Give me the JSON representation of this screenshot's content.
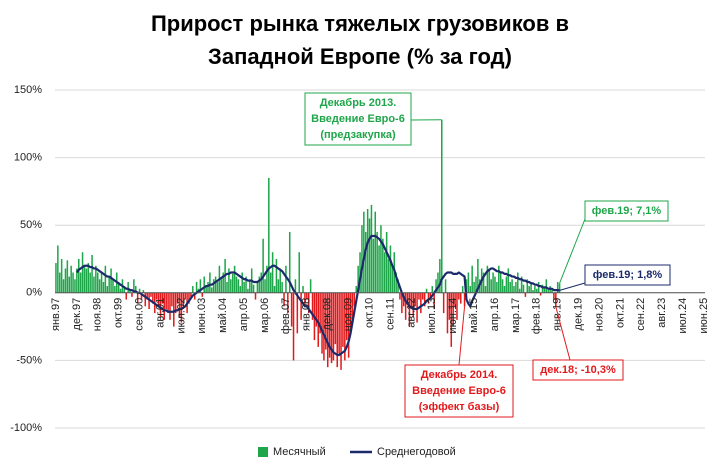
{
  "chart_data": {
    "type": "bar",
    "title": [
      "Прирост рынка тяжелых грузовиков в",
      "Западной Европе (% за год)"
    ],
    "categories": [
      "янв.97",
      null,
      null,
      null,
      null,
      null,
      null,
      null,
      null,
      null,
      null,
      "дек.97",
      null,
      null,
      null,
      null,
      null,
      null,
      null,
      null,
      null,
      null,
      "ноя.98",
      null,
      null,
      null,
      null,
      null,
      null,
      null,
      null,
      null,
      null,
      "окт.99",
      null,
      null,
      null,
      null,
      null,
      null,
      null,
      null,
      null,
      null,
      "сен.00",
      null,
      null,
      null,
      null,
      null,
      null,
      null,
      null,
      null,
      null,
      "авг.01",
      null,
      null,
      null,
      null,
      null,
      null,
      null,
      null,
      null,
      null,
      "июл.02",
      null,
      null,
      null,
      null,
      null,
      null,
      null,
      null,
      null,
      null,
      "июн.03",
      null,
      null,
      null,
      null,
      null,
      null,
      null,
      null,
      null,
      null,
      "май.04",
      null,
      null,
      null,
      null,
      null,
      null,
      null,
      null,
      null,
      null,
      "апр.05",
      null,
      null,
      null,
      null,
      null,
      null,
      null,
      null,
      null,
      null,
      "мар.06",
      null,
      null,
      null,
      null,
      null,
      null,
      null,
      null,
      null,
      null,
      "фев.07",
      null,
      null,
      null,
      null,
      null,
      null,
      null,
      null,
      null,
      null,
      "янв.08",
      null,
      null,
      null,
      null,
      null,
      null,
      null,
      null,
      null,
      null,
      "дек.08",
      null,
      null,
      null,
      null,
      null,
      null,
      null,
      null,
      null,
      null,
      "ноя.09",
      null,
      null,
      null,
      null,
      null,
      null,
      null,
      null,
      null,
      null,
      "окт.10",
      null,
      null,
      null,
      null,
      null,
      null,
      null,
      null,
      null,
      null,
      "сен.11",
      null,
      null,
      null,
      null,
      null,
      null,
      null,
      null,
      null,
      null,
      "авг.12",
      null,
      null,
      null,
      null,
      null,
      null,
      null,
      null,
      null,
      null,
      "июл.13",
      null,
      null,
      null,
      null,
      null,
      null,
      null,
      null,
      null,
      null,
      "июн.14",
      null,
      null,
      null,
      null,
      null,
      null,
      null,
      null,
      null,
      null,
      "май.15",
      null,
      null,
      null,
      null,
      null,
      null,
      null,
      null,
      null,
      null,
      "апр.16",
      null,
      null,
      null,
      null,
      null,
      null,
      null,
      null,
      null,
      null,
      "мар.17",
      null,
      null,
      null,
      null,
      null,
      null,
      null,
      null,
      null,
      null,
      "фев.18",
      null,
      null,
      null,
      null,
      null,
      null,
      null,
      null,
      null,
      null,
      "янв.19",
      null,
      null,
      null,
      null,
      null,
      null,
      null,
      null,
      null,
      null,
      "дек.19",
      null,
      null,
      null,
      null,
      null,
      null,
      null,
      null,
      null,
      null,
      "ноя.20",
      null,
      null,
      null,
      null,
      null,
      null,
      null,
      null,
      null,
      null,
      "окт.21",
      null,
      null,
      null,
      null,
      null,
      null,
      null,
      null,
      null,
      null,
      "сен.22",
      null,
      null,
      null,
      null,
      null,
      null,
      null,
      null,
      null,
      null,
      "авг.23",
      null,
      null,
      null,
      null,
      null,
      null,
      null,
      null,
      null,
      null,
      "июл.24",
      null,
      null,
      null,
      null,
      null,
      null,
      null,
      null,
      null,
      null,
      "июн.25"
    ],
    "series": [
      {
        "name": "Месячный",
        "type": "bar",
        "color": "#1fa64a",
        "negative_color": "#e31a1c",
        "values": [
          22,
          35,
          15,
          25,
          10,
          18,
          24,
          12,
          20,
          15,
          10,
          18,
          25,
          15,
          30,
          20,
          18,
          22,
          15,
          28,
          12,
          20,
          15,
          10,
          15,
          8,
          20,
          5,
          12,
          18,
          10,
          5,
          15,
          8,
          3,
          10,
          5,
          -5,
          8,
          2,
          -3,
          10,
          5,
          -8,
          3,
          -5,
          2,
          -10,
          -5,
          -12,
          -3,
          -8,
          -15,
          -5,
          -10,
          -18,
          -8,
          -20,
          -12,
          -15,
          -20,
          -10,
          -25,
          -15,
          -8,
          -18,
          -22,
          -10,
          -5,
          -15,
          -8,
          -3,
          5,
          -5,
          8,
          3,
          10,
          -3,
          12,
          5,
          8,
          15,
          4,
          10,
          12,
          8,
          20,
          10,
          15,
          25,
          8,
          18,
          10,
          14,
          20,
          12,
          10,
          5,
          15,
          8,
          12,
          3,
          10,
          18,
          6,
          -5,
          8,
          12,
          15,
          40,
          10,
          20,
          85,
          15,
          30,
          5,
          25,
          10,
          18,
          8,
          -10,
          20,
          -15,
          45,
          -25,
          -50,
          10,
          -30,
          30,
          -20,
          5,
          -10,
          -5,
          -15,
          10,
          -20,
          -35,
          -25,
          -40,
          -30,
          -45,
          -50,
          -42,
          -55,
          -48,
          -52,
          -50,
          -38,
          -55,
          -45,
          -57,
          -40,
          -50,
          -35,
          -48,
          -30,
          -20,
          -10,
          5,
          20,
          30,
          50,
          60,
          45,
          62,
          55,
          65,
          40,
          60,
          45,
          35,
          50,
          40,
          30,
          45,
          25,
          35,
          20,
          30,
          15,
          10,
          -5,
          -15,
          -10,
          -20,
          -8,
          -25,
          -12,
          -18,
          -10,
          -22,
          -5,
          -15,
          -5,
          -10,
          3,
          -8,
          -3,
          5,
          -12,
          10,
          15,
          25,
          128,
          -15,
          10,
          -30,
          -20,
          -40,
          -25,
          -10,
          -20,
          -5,
          -8,
          5,
          -10,
          10,
          15,
          5,
          20,
          8,
          12,
          25,
          10,
          18,
          15,
          5,
          20,
          18,
          10,
          15,
          12,
          8,
          20,
          15,
          10,
          5,
          12,
          18,
          8,
          10,
          5,
          8,
          15,
          3,
          12,
          6,
          -3,
          10,
          5,
          8,
          2,
          5,
          3,
          8,
          -2,
          6,
          4,
          10,
          2,
          5,
          3,
          -5,
          -10.3,
          8,
          7.1,
          null,
          null,
          null,
          null,
          null,
          null,
          null,
          null,
          null,
          null,
          null,
          null,
          null,
          null,
          null,
          null,
          null,
          null,
          null,
          null,
          null,
          null,
          null,
          null,
          null,
          null,
          null,
          null,
          null,
          null,
          null,
          null,
          null,
          null,
          null,
          null,
          null,
          null,
          null,
          null,
          null,
          null,
          null,
          null,
          null,
          null,
          null,
          null,
          null,
          null,
          null,
          null,
          null,
          null,
          null,
          null,
          null,
          null,
          null,
          null,
          null,
          null,
          null,
          null,
          null,
          null,
          null,
          null,
          null,
          null,
          null,
          null,
          null,
          null,
          null,
          null
        ]
      },
      {
        "name": "Среднегодовой",
        "type": "line",
        "color": "#1b2a6b",
        "values": [
          null,
          null,
          null,
          null,
          null,
          null,
          null,
          null,
          null,
          null,
          null,
          15,
          17,
          18,
          19,
          20,
          20,
          20,
          19,
          19,
          18,
          18,
          17,
          16,
          15,
          14,
          13,
          12,
          12,
          11,
          10,
          9,
          8,
          7,
          6,
          5,
          4,
          3,
          3,
          2,
          2,
          1,
          1,
          0,
          0,
          -1,
          -2,
          -3,
          -4,
          -5,
          -6,
          -7,
          -8,
          -9,
          -10,
          -11,
          -12,
          -13,
          -13,
          -14,
          -14,
          -14,
          -14,
          -13,
          -13,
          -12,
          -12,
          -11,
          -10,
          -8,
          -6,
          -4,
          -2,
          -1,
          0,
          1,
          2,
          3,
          4,
          5,
          5,
          6,
          6,
          7,
          8,
          9,
          10,
          11,
          12,
          13,
          14,
          14,
          15,
          15,
          15,
          14,
          13,
          12,
          11,
          10,
          10,
          9,
          9,
          9,
          8,
          8,
          8,
          9,
          10,
          12,
          14,
          16,
          18,
          19,
          20,
          20,
          19,
          18,
          17,
          16,
          14,
          12,
          10,
          8,
          5,
          2,
          0,
          -2,
          -4,
          -6,
          -8,
          -10,
          -10,
          -12,
          -14,
          -16,
          -18,
          -20,
          -22,
          -25,
          -28,
          -31,
          -34,
          -37,
          -40,
          -42,
          -44,
          -45,
          -46,
          -46,
          -45,
          -44,
          -43,
          -40,
          -36,
          -30,
          -22,
          -14,
          -6,
          2,
          10,
          18,
          25,
          32,
          37,
          40,
          42,
          42,
          42,
          41,
          40,
          38,
          36,
          33,
          30,
          27,
          24,
          20,
          17,
          12,
          8,
          4,
          0,
          -3,
          -6,
          -8,
          -10,
          -11,
          -12,
          -12,
          -12,
          -11,
          -10,
          -9,
          -8,
          -6,
          -5,
          -4,
          -2,
          0,
          2,
          4,
          6,
          10,
          12,
          14,
          15,
          15,
          15,
          14,
          14,
          14,
          15,
          14,
          13,
          12,
          -5,
          -8,
          -10,
          -6,
          -3,
          0,
          3,
          6,
          9,
          12,
          14,
          16,
          17,
          18,
          18,
          17,
          16,
          16,
          15,
          15,
          14,
          14,
          13,
          13,
          12,
          12,
          11,
          11,
          10,
          10,
          9,
          9,
          8,
          8,
          7,
          7,
          6,
          6,
          5,
          5,
          4,
          4,
          4,
          3,
          3,
          3,
          2,
          2,
          2,
          1.8,
          null,
          null,
          null,
          null,
          null,
          null,
          null,
          null,
          null,
          null,
          null,
          null,
          null,
          null,
          null,
          null,
          null,
          null,
          null,
          null,
          null,
          null,
          null,
          null,
          null,
          null,
          null,
          null,
          null,
          null,
          null,
          null,
          null,
          null,
          null,
          null,
          null,
          null,
          null,
          null,
          null,
          null,
          null,
          null,
          null,
          null,
          null,
          null,
          null,
          null,
          null,
          null,
          null,
          null,
          null,
          null,
          null,
          null,
          null,
          null,
          null,
          null,
          null,
          null,
          null,
          null,
          null,
          null,
          null,
          null,
          null,
          null,
          null,
          null,
          null,
          null
        ]
      }
    ],
    "ylim": [
      -100,
      150
    ],
    "yticks": [
      {
        "value": -100,
        "label": "-100%"
      },
      {
        "value": -50,
        "label": "-50%"
      },
      {
        "value": 0,
        "label": "0%"
      },
      {
        "value": 50,
        "label": "50%"
      },
      {
        "value": 100,
        "label": "100%"
      },
      {
        "value": 150,
        "label": "150%"
      }
    ],
    "grid": true,
    "legend": "bottom",
    "annotations": [
      {
        "text": [
          "Декабрь 2013.",
          "Введение Евро-6",
          "(предзакупка)"
        ],
        "color": "#1fa64a"
      },
      {
        "text": [
          "Декабрь 2014.",
          "Введение Евро-6",
          "(эффект базы)"
        ],
        "color": "#e31a1c"
      },
      {
        "text": [
          "фев.19; 7,1%"
        ],
        "color": "#1fa64a"
      },
      {
        "text": [
          "фев.19; 1,8%"
        ],
        "color": "#1b2a6b"
      },
      {
        "text": [
          "дек.18; -10,3%"
        ],
        "color": "#e31a1c"
      }
    ]
  }
}
